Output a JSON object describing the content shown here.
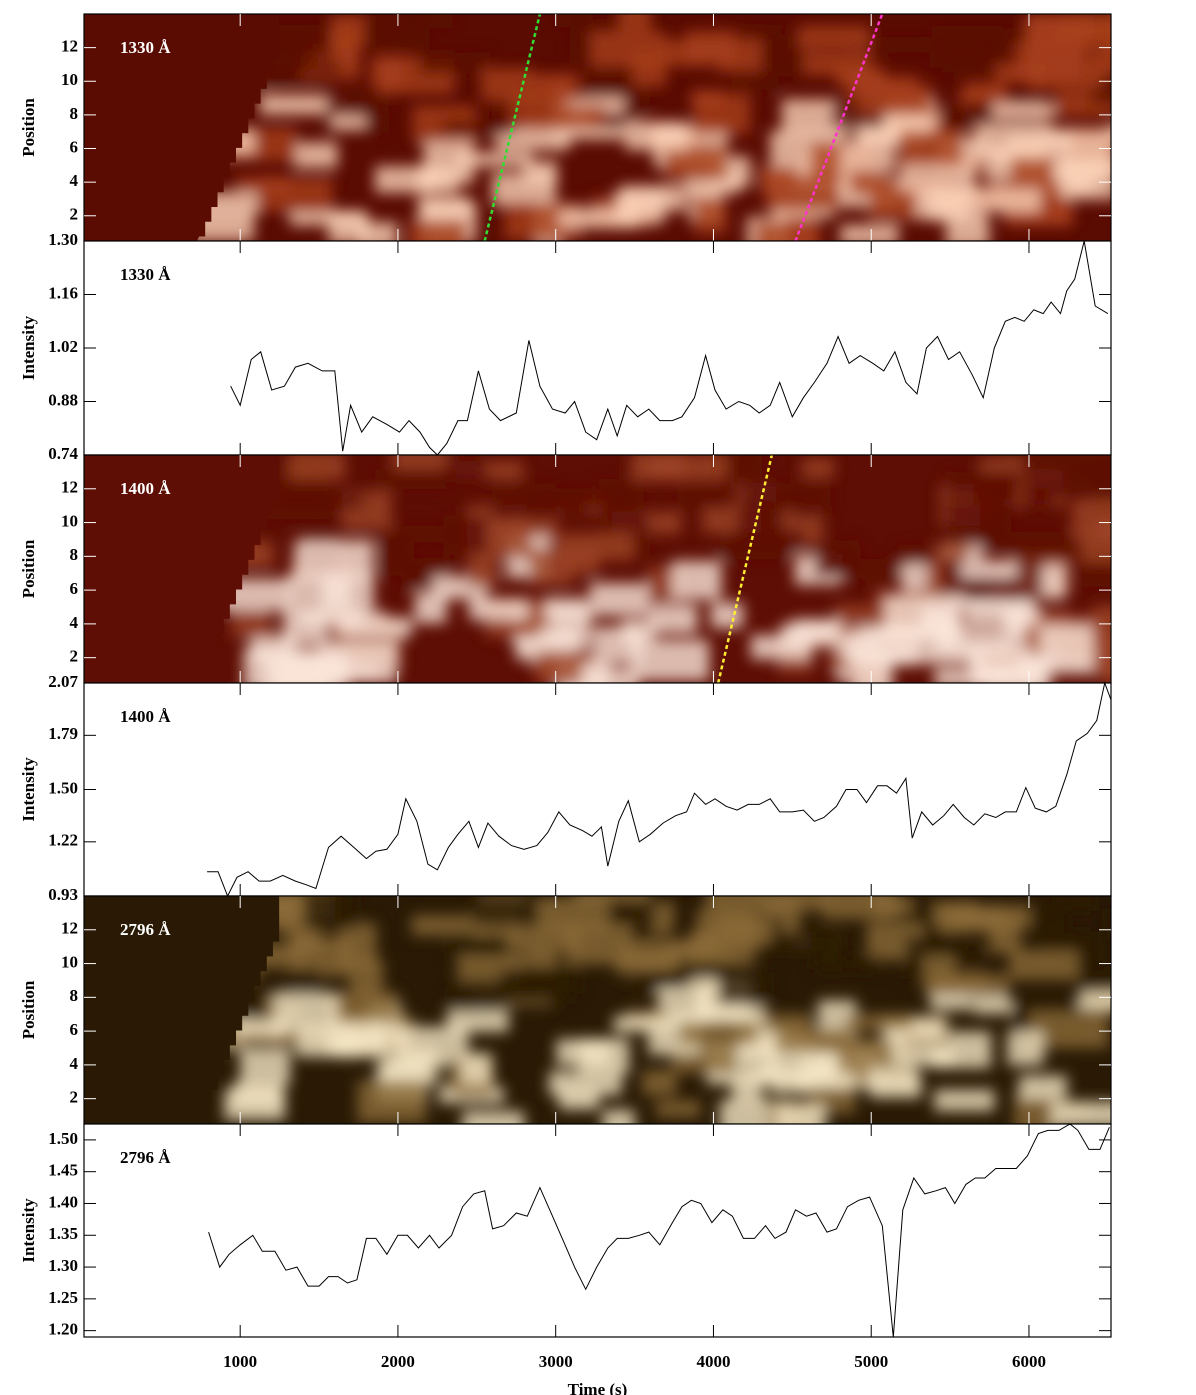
{
  "chart_data": [
    {
      "type": "heatmap",
      "label": "1330 Å",
      "ylabel": "Position",
      "xlim": [
        10,
        6520
      ],
      "ylim": [
        0.5,
        14
      ],
      "yticks": [
        2,
        4,
        6,
        8,
        10,
        12
      ],
      "colormap": [
        "#5a0b02",
        "#a8401a",
        "#fbd2b8"
      ],
      "lines": [
        {
          "color": "#33dd33",
          "x": [
            2550,
            2900
          ],
          "y": [
            0.5,
            14
          ]
        },
        {
          "color": "#ff33cc",
          "x": [
            4520,
            5070
          ],
          "y": [
            0.5,
            14
          ]
        }
      ]
    },
    {
      "type": "line",
      "label": "1330 Å",
      "ylabel": "Intensity",
      "xlim": [
        10,
        6520
      ],
      "ylim": [
        0.74,
        1.3
      ],
      "yticks": [
        0.74,
        0.88,
        1.02,
        1.16,
        {
          "value": 1.3,
          "label": "1.30"
        }
      ],
      "color": "#000000",
      "x": [
        940,
        1000,
        1070,
        1130,
        1200,
        1280,
        1350,
        1430,
        1520,
        1600,
        1650,
        1700,
        1770,
        1840,
        1930,
        2010,
        2070,
        2140,
        2200,
        2250,
        2310,
        2380,
        2440,
        2510,
        2580,
        2650,
        2750,
        2830,
        2900,
        2980,
        3060,
        3120,
        3190,
        3260,
        3330,
        3390,
        3450,
        3520,
        3590,
        3660,
        3740,
        3800,
        3880,
        3950,
        4010,
        4080,
        4160,
        4230,
        4290,
        4360,
        4420,
        4500,
        4570,
        4640,
        4720,
        4790,
        4860,
        4930,
        5010,
        5080,
        5150,
        5220,
        5290,
        5350,
        5420,
        5490,
        5560,
        5640,
        5710,
        5780,
        5850,
        5910,
        5970,
        6030,
        6090,
        6140,
        6200,
        6240,
        6290,
        6350,
        6420,
        6500
      ],
      "values": [
        0.92,
        0.87,
        0.99,
        1.01,
        0.91,
        0.92,
        0.97,
        0.98,
        0.96,
        0.96,
        0.75,
        0.87,
        0.8,
        0.84,
        0.82,
        0.8,
        0.83,
        0.8,
        0.76,
        0.74,
        0.77,
        0.83,
        0.83,
        0.96,
        0.86,
        0.83,
        0.85,
        1.04,
        0.92,
        0.86,
        0.85,
        0.88,
        0.8,
        0.78,
        0.86,
        0.79,
        0.87,
        0.84,
        0.86,
        0.83,
        0.83,
        0.84,
        0.89,
        1.0,
        0.91,
        0.86,
        0.88,
        0.87,
        0.85,
        0.87,
        0.93,
        0.84,
        0.89,
        0.93,
        0.98,
        1.05,
        0.98,
        1.0,
        0.98,
        0.96,
        1.01,
        0.93,
        0.9,
        1.02,
        1.05,
        0.99,
        1.01,
        0.95,
        0.89,
        1.02,
        1.09,
        1.1,
        1.09,
        1.12,
        1.11,
        1.14,
        1.11,
        1.17,
        1.2,
        1.3,
        1.13,
        1.11
      ]
    },
    {
      "type": "heatmap",
      "label": "1400 Å",
      "ylabel": "Position",
      "xlim": [
        10,
        6520
      ],
      "ylim": [
        0.5,
        14
      ],
      "yticks": [
        2,
        4,
        6,
        8,
        10,
        12
      ],
      "colormap": [
        "#5e0e04",
        "#9e4526",
        "#fbe6da"
      ],
      "lines": [
        {
          "color": "#ffee33",
          "x": [
            4030,
            4370
          ],
          "y": [
            0.5,
            14
          ]
        }
      ]
    },
    {
      "type": "line",
      "label": "1400 Å",
      "ylabel": "Intensity",
      "xlim": [
        10,
        6520
      ],
      "ylim": [
        0.93,
        2.07
      ],
      "yticks": [
        0.93,
        1.22,
        {
          "value": 1.5,
          "label": "1.50"
        },
        1.79,
        2.07
      ],
      "color": "#000000",
      "x": [
        790,
        860,
        920,
        980,
        1050,
        1120,
        1190,
        1270,
        1350,
        1420,
        1480,
        1560,
        1640,
        1720,
        1800,
        1860,
        1930,
        2000,
        2050,
        2120,
        2190,
        2250,
        2320,
        2380,
        2450,
        2510,
        2570,
        2640,
        2720,
        2800,
        2880,
        2950,
        3020,
        3090,
        3170,
        3230,
        3290,
        3330,
        3400,
        3460,
        3530,
        3600,
        3680,
        3760,
        3830,
        3880,
        3950,
        4010,
        4080,
        4150,
        4220,
        4290,
        4360,
        4420,
        4500,
        4570,
        4640,
        4700,
        4780,
        4840,
        4910,
        4970,
        5040,
        5100,
        5160,
        5220,
        5260,
        5320,
        5390,
        5460,
        5520,
        5590,
        5650,
        5720,
        5790,
        5850,
        5920,
        5980,
        6040,
        6110,
        6170,
        6240,
        6300,
        6370,
        6430,
        6480,
        6520
      ],
      "values": [
        1.06,
        1.06,
        0.93,
        1.03,
        1.06,
        1.01,
        1.01,
        1.04,
        1.01,
        0.99,
        0.97,
        1.19,
        1.25,
        1.19,
        1.13,
        1.17,
        1.18,
        1.26,
        1.45,
        1.33,
        1.1,
        1.07,
        1.19,
        1.26,
        1.33,
        1.19,
        1.32,
        1.25,
        1.2,
        1.18,
        1.2,
        1.27,
        1.38,
        1.31,
        1.28,
        1.25,
        1.3,
        1.09,
        1.33,
        1.44,
        1.22,
        1.26,
        1.32,
        1.36,
        1.38,
        1.48,
        1.42,
        1.45,
        1.41,
        1.39,
        1.42,
        1.42,
        1.45,
        1.38,
        1.38,
        1.39,
        1.33,
        1.35,
        1.41,
        1.5,
        1.5,
        1.43,
        1.52,
        1.52,
        1.48,
        1.56,
        1.24,
        1.38,
        1.31,
        1.36,
        1.42,
        1.35,
        1.31,
        1.37,
        1.35,
        1.38,
        1.38,
        1.51,
        1.4,
        1.38,
        1.41,
        1.58,
        1.76,
        1.8,
        1.87,
        2.07,
        1.98
      ]
    },
    {
      "type": "heatmap",
      "label": "2796 Å",
      "ylabel": "Position",
      "xlim": [
        10,
        6520
      ],
      "ylim": [
        0.5,
        14
      ],
      "yticks": [
        2,
        4,
        6,
        8,
        10,
        12
      ],
      "colormap": [
        "#2a1a05",
        "#8c6c38",
        "#f5e6c4"
      ],
      "lines": []
    },
    {
      "type": "line",
      "label": "2796 Å",
      "ylabel": "Intensity",
      "xlim": [
        10,
        6520
      ],
      "ylim": [
        1.19,
        1.525
      ],
      "yticks": [
        {
          "value": 1.2,
          "label": "1.20"
        },
        1.25,
        {
          "value": 1.3,
          "label": "1.30"
        },
        1.35,
        {
          "value": 1.4,
          "label": "1.40"
        },
        1.45,
        {
          "value": 1.5,
          "label": "1.50"
        }
      ],
      "color": "#000000",
      "xticks": [
        1000,
        2000,
        3000,
        4000,
        5000,
        6000
      ],
      "xlabel": "Time (s)",
      "x": [
        800,
        870,
        930,
        1000,
        1080,
        1140,
        1220,
        1290,
        1360,
        1430,
        1500,
        1560,
        1620,
        1680,
        1740,
        1800,
        1860,
        1930,
        2000,
        2060,
        2130,
        2200,
        2260,
        2340,
        2410,
        2480,
        2550,
        2600,
        2670,
        2750,
        2820,
        2900,
        2980,
        3050,
        3120,
        3190,
        3260,
        3330,
        3390,
        3460,
        3530,
        3590,
        3660,
        3740,
        3800,
        3860,
        3920,
        3990,
        4060,
        4120,
        4190,
        4260,
        4330,
        4390,
        4460,
        4520,
        4590,
        4650,
        4720,
        4780,
        4850,
        4920,
        4990,
        5070,
        5140,
        5200,
        5270,
        5340,
        5410,
        5470,
        5530,
        5600,
        5660,
        5720,
        5790,
        5850,
        5920,
        5990,
        6060,
        6120,
        6190,
        6260,
        6310,
        6380,
        6450,
        6510
      ],
      "values": [
        1.355,
        1.3,
        1.32,
        1.335,
        1.35,
        1.325,
        1.325,
        1.295,
        1.3,
        1.27,
        1.27,
        1.285,
        1.285,
        1.275,
        1.28,
        1.345,
        1.345,
        1.32,
        1.35,
        1.35,
        1.33,
        1.35,
        1.33,
        1.35,
        1.395,
        1.415,
        1.42,
        1.36,
        1.365,
        1.385,
        1.38,
        1.425,
        1.38,
        1.34,
        1.3,
        1.265,
        1.3,
        1.33,
        1.345,
        1.345,
        1.35,
        1.355,
        1.335,
        1.37,
        1.395,
        1.405,
        1.4,
        1.37,
        1.39,
        1.38,
        1.345,
        1.345,
        1.365,
        1.345,
        1.355,
        1.39,
        1.38,
        1.385,
        1.355,
        1.36,
        1.395,
        1.405,
        1.41,
        1.365,
        1.19,
        1.39,
        1.44,
        1.415,
        1.42,
        1.425,
        1.4,
        1.43,
        1.44,
        1.44,
        1.455,
        1.455,
        1.455,
        1.475,
        1.51,
        1.515,
        1.515,
        1.525,
        1.515,
        1.485,
        1.485,
        1.52
      ]
    }
  ]
}
